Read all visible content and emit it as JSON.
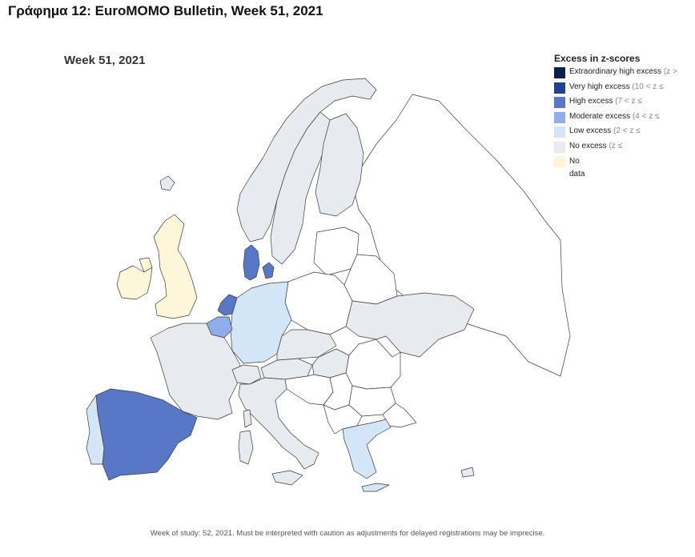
{
  "header": {
    "title": "Γράφημα 12: EuroMOMO Bulletin, Week 51, 2021"
  },
  "map": {
    "title": "Week 51, 2021",
    "footnote": "Week of study: 52, 2021. Must be interpreted with caution as adjustments for delayed registrations may be imprecise."
  },
  "legend": {
    "title": "Excess in z-scores",
    "items": [
      {
        "label": "Extraordinary high excess",
        "range": "(z >",
        "color": "#0d1f4f"
      },
      {
        "label": "Very high excess",
        "range": "(10 < z ≤",
        "color": "#1f4391"
      },
      {
        "label": "High excess",
        "range": "(7 < z ≤",
        "color": "#5878c7"
      },
      {
        "label": "Moderate excess",
        "range": "(4 < z ≤",
        "color": "#8fadea"
      },
      {
        "label": "Low excess",
        "range": "(2 < z ≤",
        "color": "#d3e6f7"
      },
      {
        "label": "No excess",
        "range": "(z ≤",
        "color": "#e7ebef"
      },
      {
        "label": "No data",
        "range": "",
        "color": "#fdf6d8"
      }
    ]
  },
  "regions": {
    "no_data": "#fdf6d8",
    "no_excess": "#e7ebef",
    "low": "#d3e6f7",
    "moderate": "#8fadea",
    "high": "#5878c7",
    "not_participating": "#ffffff"
  }
}
